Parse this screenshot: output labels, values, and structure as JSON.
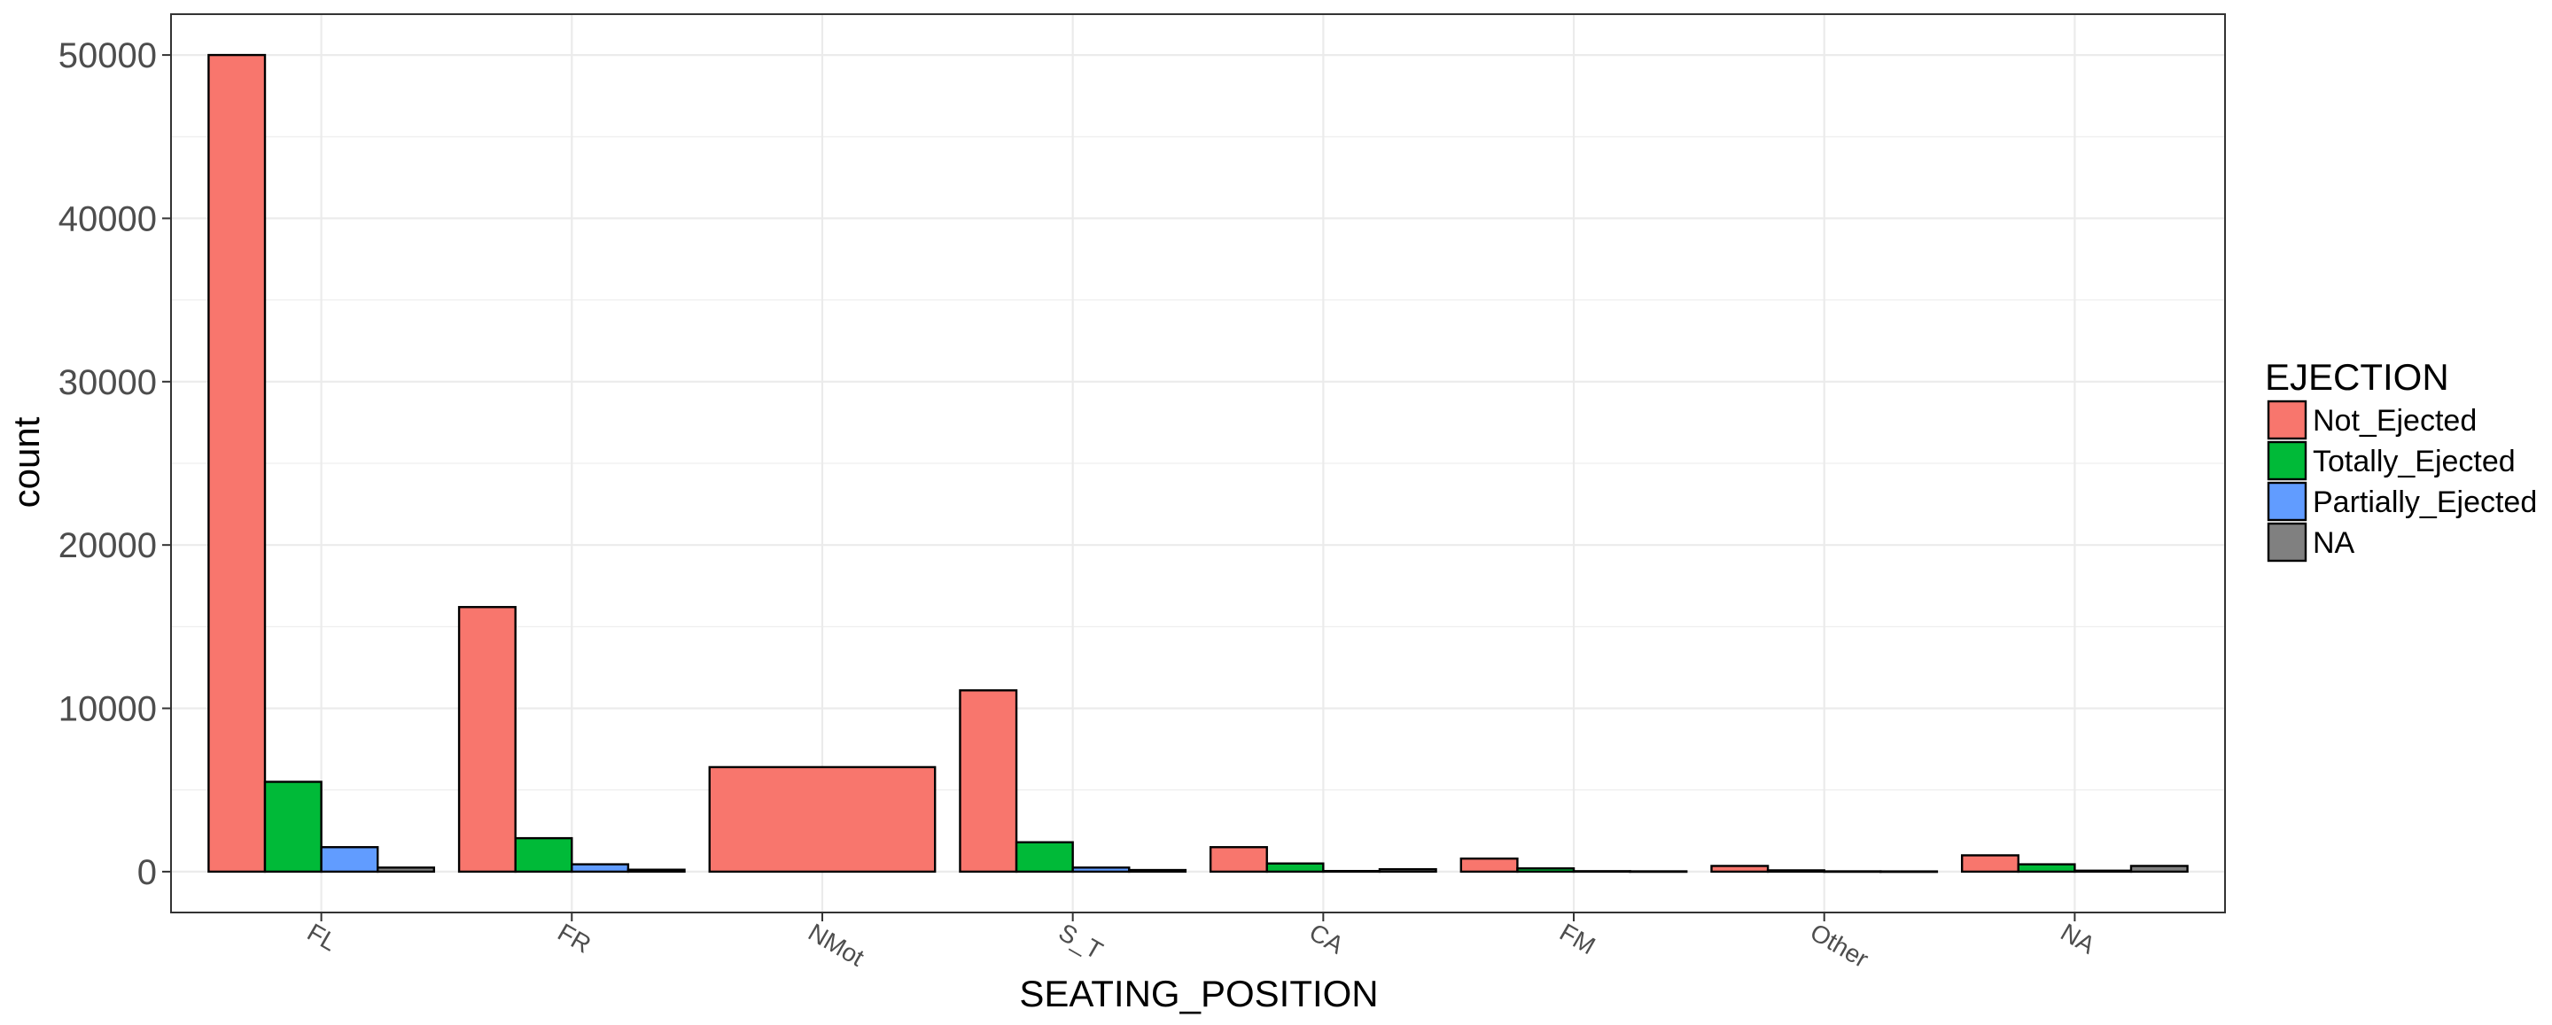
{
  "chart_data": {
    "type": "bar",
    "categories": [
      "FL",
      "FR",
      "NMot",
      "S_T",
      "CA",
      "FM",
      "Other",
      "NA"
    ],
    "xlabel": "SEATING_POSITION",
    "ylabel": "count",
    "ylim": [
      -2500,
      52500
    ],
    "yticks": [
      0,
      10000,
      20000,
      30000,
      40000,
      50000
    ],
    "grid": true,
    "legend": {
      "title": "EJECTION",
      "position": "right"
    },
    "series": [
      {
        "name": "Not_Ejected",
        "color": "#F8766D",
        "values": [
          50000,
          16200,
          6400,
          11100,
          1500,
          800,
          350,
          1000
        ]
      },
      {
        "name": "Totally_Ejected",
        "color": "#00BA38",
        "values": [
          5500,
          2050,
          null,
          1800,
          500,
          200,
          80,
          450
        ]
      },
      {
        "name": "Partially_Ejected",
        "color": "#619CFF",
        "values": [
          1500,
          450,
          null,
          250,
          40,
          30,
          20,
          60
        ]
      },
      {
        "name": "NA",
        "color": "#808080",
        "values": [
          250,
          120,
          null,
          100,
          150,
          20,
          15,
          350
        ]
      }
    ]
  }
}
